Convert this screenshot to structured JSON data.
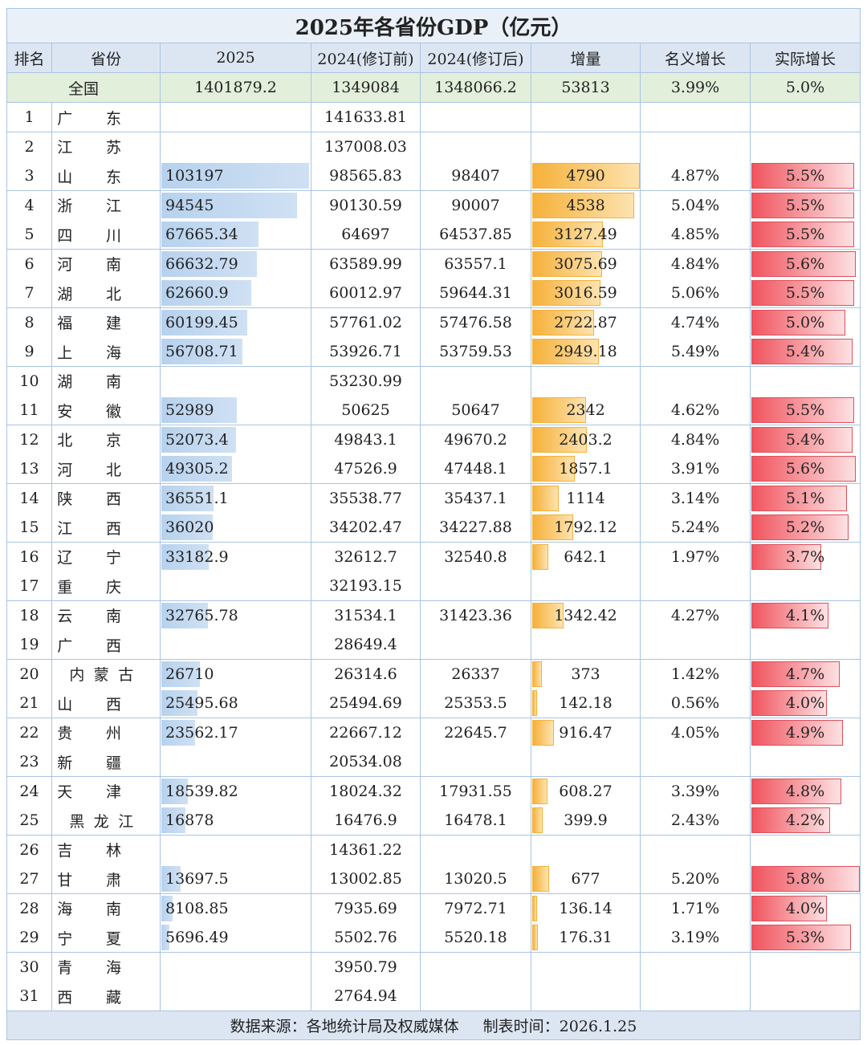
{
  "header": {
    "title": "2025年各省份GDP（亿元）"
  },
  "table": {
    "columns": [
      "排名",
      "省份",
      "2025",
      "2024(修订前)",
      "2024(修订后)",
      "增量",
      "名义增长",
      "实际增长"
    ],
    "national": [
      "全国",
      "1401879.2",
      "1349084",
      "1348066.2",
      "53813",
      "3.99%",
      "5.0%"
    ],
    "rows": [
      [
        1,
        "广东",
        null,
        "141633.81",
        null,
        null,
        null,
        null
      ],
      [
        2,
        "江苏",
        null,
        "137008.03",
        null,
        null,
        null,
        null
      ],
      [
        3,
        "山东",
        "103197",
        "98565.83",
        "98407",
        "4790",
        "4.87%",
        "5.5%"
      ],
      [
        4,
        "浙江",
        "94545",
        "90130.59",
        "90007",
        "4538",
        "5.04%",
        "5.5%"
      ],
      [
        5,
        "四川",
        "67665.34",
        "64697",
        "64537.85",
        "3127.49",
        "4.85%",
        "5.5%"
      ],
      [
        6,
        "河南",
        "66632.79",
        "63589.99",
        "63557.1",
        "3075.69",
        "4.84%",
        "5.6%"
      ],
      [
        7,
        "湖北",
        "62660.9",
        "60012.97",
        "59644.31",
        "3016.59",
        "5.06%",
        "5.5%"
      ],
      [
        8,
        "福建",
        "60199.45",
        "57761.02",
        "57476.58",
        "2722.87",
        "4.74%",
        "5.0%"
      ],
      [
        9,
        "上海",
        "56708.71",
        "53926.71",
        "53759.53",
        "2949.18",
        "5.49%",
        "5.4%"
      ],
      [
        10,
        "湖南",
        null,
        "53230.99",
        null,
        null,
        null,
        null
      ],
      [
        11,
        "安徽",
        "52989",
        "50625",
        "50647",
        "2342",
        "4.62%",
        "5.5%"
      ],
      [
        12,
        "北京",
        "52073.4",
        "49843.1",
        "49670.2",
        "2403.2",
        "4.84%",
        "5.4%"
      ],
      [
        13,
        "河北",
        "49305.2",
        "47526.9",
        "47448.1",
        "1857.1",
        "3.91%",
        "5.6%"
      ],
      [
        14,
        "陕西",
        "36551.1",
        "35538.77",
        "35437.1",
        "1114",
        "3.14%",
        "5.1%"
      ],
      [
        15,
        "江西",
        "36020",
        "34202.47",
        "34227.88",
        "1792.12",
        "5.24%",
        "5.2%"
      ],
      [
        16,
        "辽宁",
        "33182.9",
        "32612.7",
        "32540.8",
        "642.1",
        "1.97%",
        "3.7%"
      ],
      [
        17,
        "重庆",
        null,
        "32193.15",
        null,
        null,
        null,
        null
      ],
      [
        18,
        "云南",
        "32765.78",
        "31534.1",
        "31423.36",
        "1342.42",
        "4.27%",
        "4.1%"
      ],
      [
        19,
        "广西",
        null,
        "28649.4",
        null,
        null,
        null,
        null
      ],
      [
        20,
        "内蒙古",
        "26710",
        "26314.6",
        "26337",
        "373",
        "1.42%",
        "4.7%"
      ],
      [
        21,
        "山西",
        "25495.68",
        "25494.69",
        "25353.5",
        "142.18",
        "0.56%",
        "4.0%"
      ],
      [
        22,
        "贵州",
        "23562.17",
        "22667.12",
        "22645.7",
        "916.47",
        "4.05%",
        "4.9%"
      ],
      [
        23,
        "新疆",
        null,
        "20534.08",
        null,
        null,
        null,
        null
      ],
      [
        24,
        "天津",
        "18539.82",
        "18024.32",
        "17931.55",
        "608.27",
        "3.39%",
        "4.8%"
      ],
      [
        25,
        "黑龙江",
        "16878",
        "16476.9",
        "16478.1",
        "399.9",
        "2.43%",
        "4.2%"
      ],
      [
        26,
        "吉林",
        null,
        "14361.22",
        null,
        null,
        null,
        null
      ],
      [
        27,
        "甘肃",
        "13697.5",
        "13002.85",
        "13020.5",
        "677",
        "5.20%",
        "5.8%"
      ],
      [
        28,
        "海南",
        "8108.85",
        "7935.69",
        "7972.71",
        "136.14",
        "1.71%",
        "4.0%"
      ],
      [
        29,
        "宁夏",
        "5696.49",
        "5502.76",
        "5520.18",
        "176.31",
        "3.19%",
        "5.3%"
      ],
      [
        30,
        "青海",
        null,
        "3950.79",
        null,
        null,
        null,
        null
      ],
      [
        31,
        "西藏",
        null,
        "2764.94",
        null,
        null,
        null,
        null
      ]
    ]
  },
  "footer": {
    "source": "数据来源：各地统计局及权威媒体",
    "date": "制表时间：2026.1.25"
  }
}
